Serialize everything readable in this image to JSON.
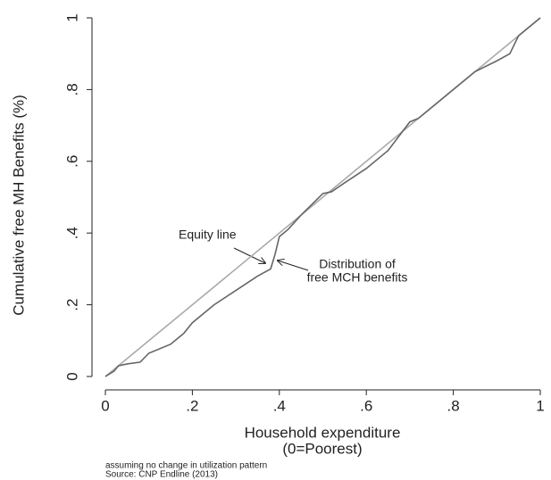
{
  "chart_data": {
    "type": "line",
    "xlabel": [
      "Household expenditure",
      "(0=Poorest)"
    ],
    "ylabel": "Cumulative free MH Benefits (%)",
    "annotations": [
      "Equity line",
      "Distribution of",
      "free MCH benefits"
    ],
    "notes": [
      "assuming no change in utilization pattern",
      "Source: CNP Endline (2013)"
    ],
    "xlim": [
      0,
      1
    ],
    "ylim": [
      0,
      1
    ],
    "xticks": [
      0,
      {
        "value": 0.2,
        "label": ".2"
      },
      {
        "value": 0.4,
        "label": ".4"
      },
      {
        "value": 0.6,
        "label": ".6"
      },
      {
        "value": 0.8,
        "label": ".8"
      },
      1
    ],
    "yticks": [
      0,
      {
        "value": 0.2,
        "label": ".2"
      },
      {
        "value": 0.4,
        "label": ".4"
      },
      {
        "value": 0.6,
        "label": ".6"
      },
      {
        "value": 0.8,
        "label": ".8"
      },
      1
    ],
    "series": [
      {
        "color": "#aaaaaa",
        "x": [
          0,
          1
        ],
        "values": [
          0,
          1
        ]
      },
      {
        "color": "#666666",
        "x": [
          0,
          0.02,
          0.03,
          0.05,
          0.08,
          0.1,
          0.15,
          0.18,
          0.2,
          0.25,
          0.3,
          0.35,
          0.38,
          0.39,
          0.4,
          0.42,
          0.45,
          0.5,
          0.52,
          0.55,
          0.6,
          0.65,
          0.7,
          0.72,
          0.75,
          0.8,
          0.85,
          0.9,
          0.93,
          0.95,
          1
        ],
        "values": [
          0,
          0.015,
          0.03,
          0.035,
          0.04,
          0.065,
          0.09,
          0.12,
          0.15,
          0.2,
          0.24,
          0.28,
          0.3,
          0.34,
          0.39,
          0.41,
          0.45,
          0.51,
          0.515,
          0.54,
          0.58,
          0.63,
          0.71,
          0.72,
          0.75,
          0.8,
          0.85,
          0.88,
          0.9,
          0.95,
          1
        ]
      }
    ]
  }
}
